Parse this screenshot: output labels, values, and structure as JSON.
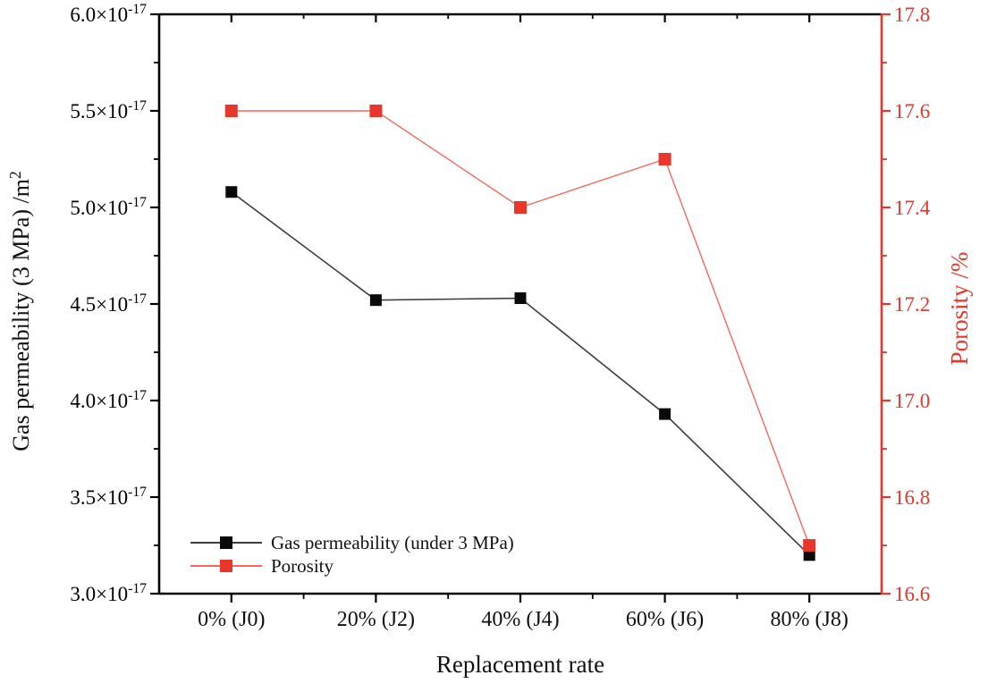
{
  "figure": {
    "kind": "scientific dual-axis line chart",
    "background": "#ffffff"
  },
  "colors": {
    "black_axis": "#000000",
    "black_line": "#3d3d3d",
    "black_marker": "#0a0a0a",
    "red_accent": "#e8362a",
    "red_line": "#f3685e",
    "text": "#111111"
  },
  "chart_data": {
    "type": "line",
    "categories": [
      "0% (J0)",
      "20% (J2)",
      "40% (J4)",
      "60% (J6)",
      "80% (J8)"
    ],
    "x_axis": {
      "label": "Replacement rate"
    },
    "left_axis": {
      "label": "Gas permeability (3 MPa) /m^{2}",
      "unit_scale": "×10⁻¹⁷ m²",
      "min": 3.0,
      "max": 6.0,
      "major_step": 0.5,
      "minor_step": 0.25,
      "tick_labels": [
        "3.0×10^{-17}",
        "3.5×10^{-17}",
        "4.0×10^{-17}",
        "4.5×10^{-17}",
        "5.0×10^{-17}",
        "5.5×10^{-17}",
        "6.0×10^{-17}"
      ],
      "color": "#000000"
    },
    "right_axis": {
      "label": "Porosity /%",
      "min": 16.6,
      "max": 17.8,
      "major_step": 0.2,
      "minor_step": 0.1,
      "tick_labels": [
        "16.6",
        "16.8",
        "17.0",
        "17.2",
        "17.4",
        "17.6",
        "17.8"
      ],
      "color": "#e8362a"
    },
    "series": [
      {
        "name": "Gas permeability (under 3 MPa)",
        "axis": "left",
        "marker": "square",
        "marker_size": 13,
        "marker_color": "#0a0a0a",
        "line_color": "#3d3d3d",
        "line_width": 1.6,
        "values": [
          5.08,
          4.52,
          4.53,
          3.93,
          3.2
        ]
      },
      {
        "name": "Porosity",
        "axis": "right",
        "marker": "square",
        "marker_size": 14,
        "marker_color": "#e8362a",
        "line_color": "#f3685e",
        "line_width": 1.4,
        "values": [
          17.6,
          17.6,
          17.4,
          17.5,
          16.7
        ]
      }
    ],
    "legend": {
      "position": "inside-bottom-left",
      "entries": [
        "Gas permeability (under 3 MPa)",
        "Porosity"
      ]
    },
    "grid": false
  }
}
